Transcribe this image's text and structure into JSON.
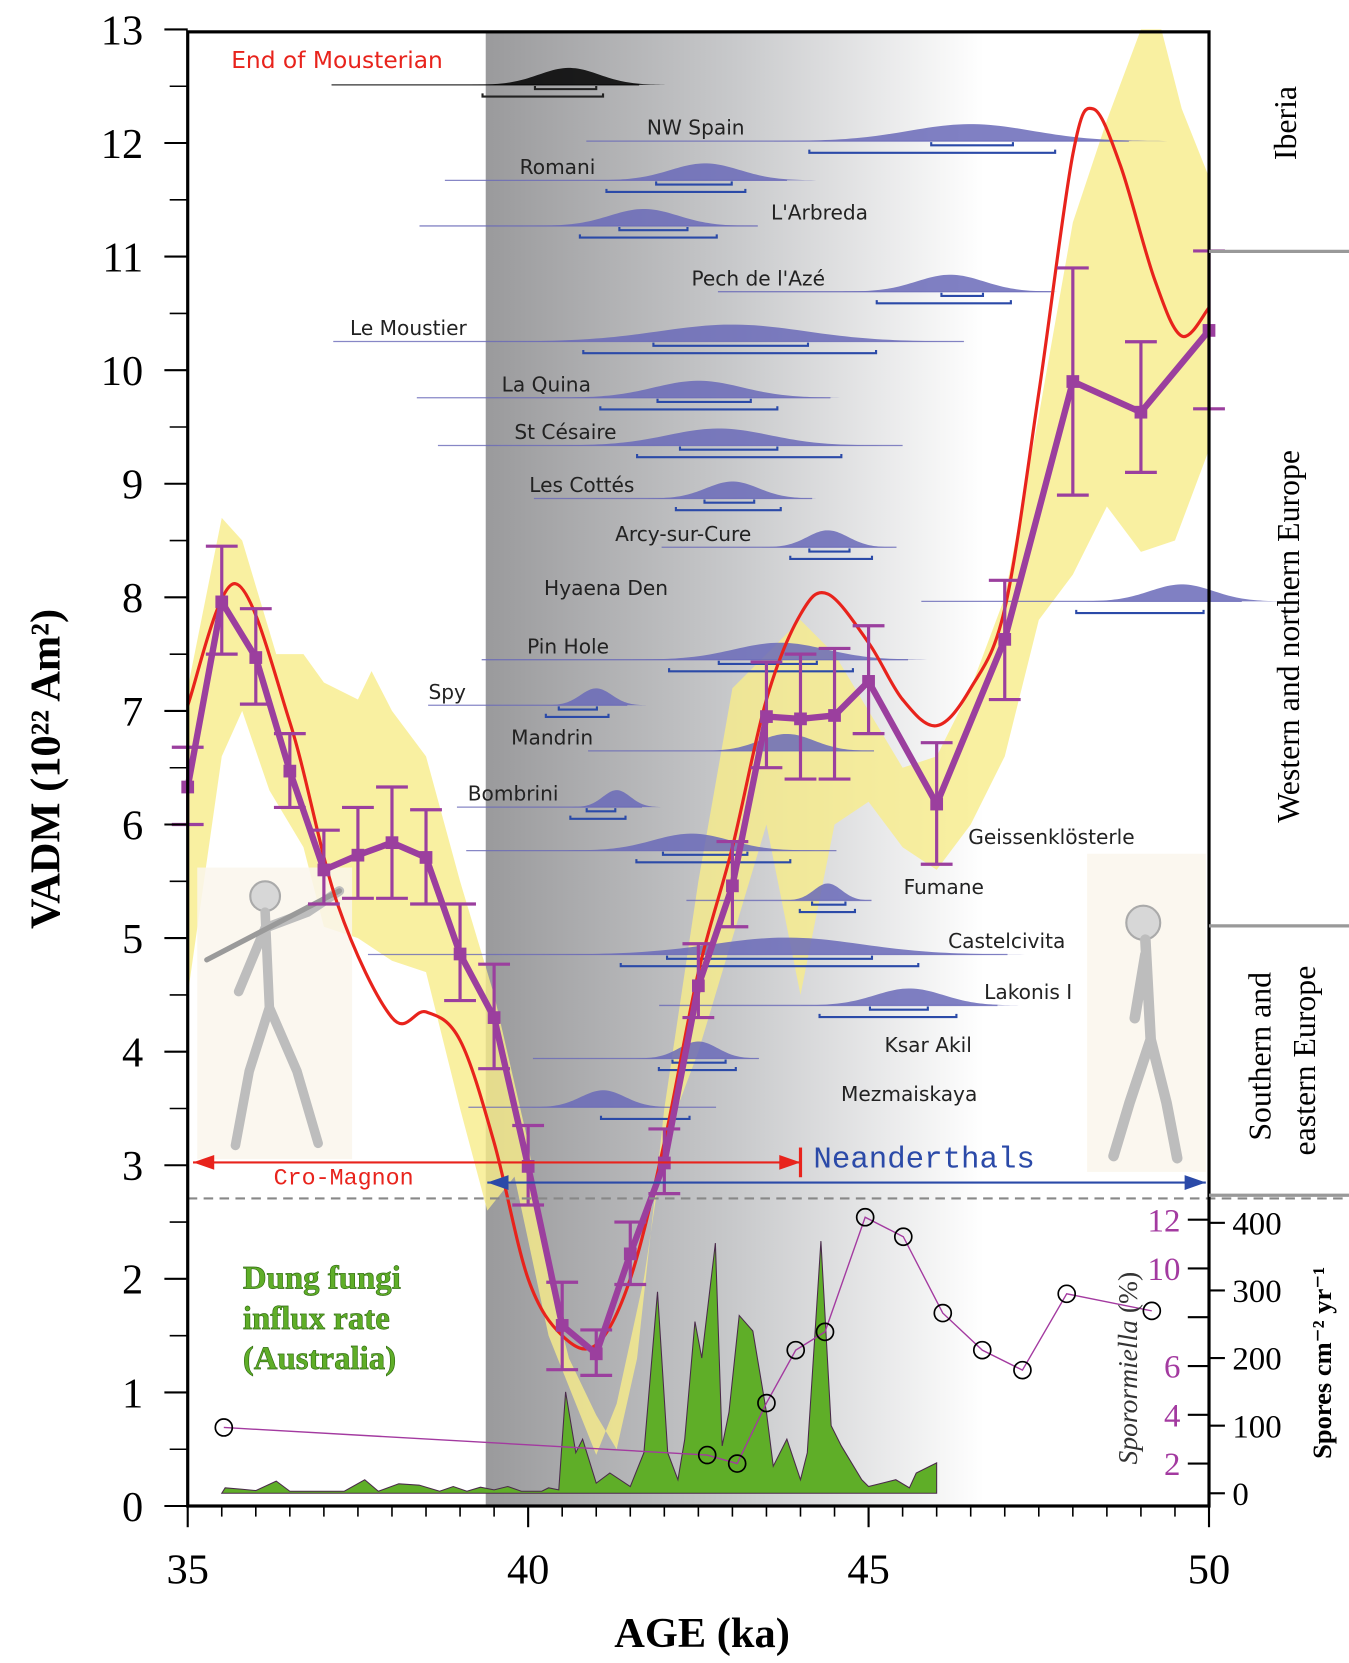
{
  "chart_data": {
    "type": "line",
    "xlabel": "AGE (ka)",
    "ylabel": "VADM (10²² Am²)",
    "xlim": [
      35,
      50
    ],
    "ylim": [
      0,
      13
    ],
    "x_ticks": [
      "35",
      "40",
      "45",
      "50"
    ],
    "y_ticks": [
      "0",
      "1",
      "2",
      "3",
      "4",
      "5",
      "6",
      "7",
      "8",
      "9",
      "10",
      "11",
      "12",
      "13"
    ],
    "colors": {
      "vadm": "#9b3f9e",
      "model": "#e8231c",
      "band": "#f7ec8a",
      "fungi": "#5fae28",
      "neanderthal": "#2b4aa8",
      "cromagnon": "#e8231c",
      "site": "#6a6ab8"
    },
    "vadm_series": {
      "x": [
        35,
        35.5,
        36,
        36.5,
        37,
        37.5,
        38,
        38.5,
        39,
        39.5,
        40,
        40.5,
        41,
        41.5,
        42,
        42.5,
        43,
        43.5,
        44,
        44.5,
        45,
        46,
        47,
        48,
        49,
        50
      ],
      "y": [
        6.33,
        7.96,
        7.47,
        6.47,
        5.6,
        5.73,
        5.84,
        5.71,
        4.86,
        4.3,
        2.99,
        1.59,
        1.34,
        2.22,
        3.02,
        4.58,
        5.46,
        6.95,
        6.93,
        6.96,
        7.26,
        6.18,
        7.63,
        9.9,
        9.63,
        10.35
      ],
      "err_low": [
        6.0,
        7.5,
        7.06,
        6.15,
        5.3,
        5.35,
        5.35,
        5.3,
        4.45,
        3.85,
        2.65,
        1.2,
        1.15,
        1.95,
        2.75,
        4.3,
        5.1,
        6.5,
        6.4,
        6.4,
        6.8,
        5.65,
        7.1,
        8.9,
        9.1,
        9.66
      ],
      "err_high": [
        6.68,
        8.45,
        7.9,
        6.8,
        5.95,
        6.15,
        6.33,
        6.13,
        5.3,
        4.77,
        3.35,
        1.97,
        1.55,
        2.5,
        3.32,
        4.95,
        5.85,
        7.43,
        7.5,
        7.55,
        7.75,
        6.72,
        8.15,
        10.9,
        10.25,
        11.05
      ]
    },
    "model_curve": {
      "x": [
        35,
        35.7,
        36.5,
        37.2,
        38,
        38.5,
        39,
        39.5,
        40,
        40.5,
        41,
        41.5,
        42,
        42.5,
        43,
        43.5,
        44,
        44.4,
        45,
        45.5,
        46,
        46.5,
        47,
        47.5,
        48,
        48.3,
        48.7,
        49.2,
        49.6,
        50
      ],
      "y": [
        7.05,
        8.12,
        6.9,
        5.3,
        4.3,
        4.35,
        4.1,
        3.2,
        2.0,
        1.5,
        1.42,
        2.0,
        3.2,
        4.7,
        5.8,
        7.1,
        7.85,
        8.03,
        7.6,
        7.1,
        6.87,
        7.2,
        7.9,
        9.8,
        11.9,
        12.3,
        11.8,
        10.8,
        10.3,
        10.55
      ]
    },
    "envelope": {
      "upper": [
        [
          35,
          7.2
        ],
        [
          35.5,
          8.7
        ],
        [
          35.8,
          8.5
        ],
        [
          36.3,
          7.5
        ],
        [
          36.7,
          7.5
        ],
        [
          37,
          7.25
        ],
        [
          37.5,
          7.1
        ],
        [
          37.7,
          7.35
        ],
        [
          38,
          7.0
        ],
        [
          38.5,
          6.6
        ],
        [
          39,
          5.5
        ],
        [
          39.5,
          4.5
        ],
        [
          40,
          3.2
        ],
        [
          40.3,
          2.0
        ],
        [
          40.6,
          1.3
        ],
        [
          41,
          0.8
        ],
        [
          41.3,
          0.5
        ],
        [
          41.6,
          1.3
        ],
        [
          42,
          3.5
        ],
        [
          42.5,
          5.5
        ],
        [
          43,
          7.2
        ],
        [
          43.5,
          7.5
        ],
        [
          44,
          7.8
        ],
        [
          44.5,
          7.5
        ],
        [
          45,
          7.0
        ],
        [
          45.5,
          6.5
        ],
        [
          46,
          6.6
        ],
        [
          46.5,
          7.2
        ],
        [
          47,
          8.0
        ],
        [
          47.5,
          9.6
        ],
        [
          48,
          11.3
        ],
        [
          48.5,
          12.2
        ],
        [
          49,
          13.0
        ],
        [
          49.3,
          13.0
        ],
        [
          49.6,
          12.3
        ],
        [
          50,
          11.7
        ]
      ],
      "lower": [
        [
          35,
          4.5
        ],
        [
          35.5,
          6.6
        ],
        [
          35.8,
          7.0
        ],
        [
          36.2,
          6.3
        ],
        [
          36.7,
          5.8
        ],
        [
          37,
          5.1
        ],
        [
          37.5,
          5.0
        ],
        [
          38,
          4.8
        ],
        [
          38.5,
          4.7
        ],
        [
          39,
          3.5
        ],
        [
          39.4,
          2.6
        ],
        [
          39.8,
          2.9
        ],
        [
          40.3,
          1.5
        ],
        [
          40.7,
          0.9
        ],
        [
          41,
          0.45
        ],
        [
          41.3,
          0.9
        ],
        [
          41.7,
          2.0
        ],
        [
          42,
          3.2
        ],
        [
          42.5,
          4.0
        ],
        [
          43,
          5.0
        ],
        [
          43.5,
          6.0
        ],
        [
          44,
          4.5
        ],
        [
          44.5,
          6.0
        ],
        [
          45,
          6.2
        ],
        [
          45.5,
          5.8
        ],
        [
          46,
          5.6
        ],
        [
          46.5,
          6.0
        ],
        [
          47,
          6.6
        ],
        [
          47.5,
          7.8
        ],
        [
          48,
          8.2
        ],
        [
          48.5,
          8.8
        ],
        [
          49,
          8.4
        ],
        [
          49.5,
          8.5
        ],
        [
          50,
          9.3
        ]
      ]
    },
    "dung_fungi": {
      "label": [
        "Dung fungi",
        "influx rate",
        "(Australia)"
      ],
      "axis_label": "Spores cm⁻² yr⁻¹",
      "ticks": [
        "0",
        "100",
        "200",
        "300",
        "400"
      ],
      "points": [
        [
          35.5,
          0
        ],
        [
          35.55,
          8
        ],
        [
          35.8,
          6
        ],
        [
          36,
          4
        ],
        [
          36.3,
          18
        ],
        [
          36.5,
          3
        ],
        [
          37.3,
          3
        ],
        [
          37.6,
          20
        ],
        [
          37.8,
          3
        ],
        [
          38.1,
          14
        ],
        [
          38.4,
          12
        ],
        [
          38.7,
          3
        ],
        [
          38.9,
          10
        ],
        [
          39.1,
          3
        ],
        [
          39.3,
          9
        ],
        [
          39.5,
          5
        ],
        [
          39.7,
          10
        ],
        [
          39.9,
          3
        ],
        [
          40.2,
          3
        ],
        [
          40.3,
          8
        ],
        [
          40.45,
          5
        ],
        [
          40.55,
          150
        ],
        [
          40.7,
          60
        ],
        [
          40.8,
          80
        ],
        [
          41.0,
          15
        ],
        [
          41.2,
          30
        ],
        [
          41.5,
          10
        ],
        [
          41.7,
          60
        ],
        [
          41.9,
          298
        ],
        [
          42.05,
          60
        ],
        [
          42.2,
          20
        ],
        [
          42.3,
          80
        ],
        [
          42.45,
          254
        ],
        [
          42.55,
          200
        ],
        [
          42.75,
          370
        ],
        [
          42.85,
          70
        ],
        [
          42.95,
          120
        ],
        [
          43.1,
          263
        ],
        [
          43.3,
          240
        ],
        [
          43.5,
          120
        ],
        [
          43.6,
          40
        ],
        [
          43.8,
          80
        ],
        [
          44.0,
          20
        ],
        [
          44.1,
          60
        ],
        [
          44.3,
          373
        ],
        [
          44.45,
          100
        ],
        [
          44.6,
          70
        ],
        [
          44.9,
          20
        ],
        [
          45.0,
          10
        ],
        [
          45.2,
          15
        ],
        [
          45.4,
          20
        ],
        [
          45.6,
          8
        ],
        [
          45.7,
          30
        ],
        [
          45.9,
          40
        ],
        [
          46.0,
          45
        ],
        [
          46.0,
          0
        ]
      ]
    },
    "sporormiella": {
      "axis_label_italic": "Sporormiella",
      "axis_label_unit": "(%)",
      "ticks": [
        "2",
        "4",
        "6",
        "10",
        "12"
      ],
      "points": [
        [
          35.53,
          3.48
        ],
        [
          42.63,
          2.35
        ],
        [
          43.07,
          2.0
        ],
        [
          43.5,
          4.48
        ],
        [
          43.93,
          6.65
        ],
        [
          44.36,
          7.4
        ],
        [
          44.95,
          12.1
        ],
        [
          45.51,
          11.3
        ],
        [
          46.09,
          8.17
        ],
        [
          46.67,
          6.65
        ],
        [
          47.26,
          5.83
        ],
        [
          47.91,
          8.96
        ],
        [
          49.16,
          8.26
        ]
      ]
    },
    "end_of_mousterian": {
      "label": "End of Mousterian",
      "peak": 40.6,
      "range_2s": [
        39.33,
        41.1
      ],
      "range_1s": [
        40.1,
        41.0
      ]
    },
    "sites": [
      {
        "name": "NW Spain",
        "peak": 46.5,
        "range_2s": [
          44.13,
          47.74
        ],
        "range_1s": [
          45.92,
          47.12
        ]
      },
      {
        "name": "Romani",
        "peak": 42.6,
        "range_2s": [
          41.15,
          43.19
        ],
        "range_1s": [
          41.88,
          42.99
        ]
      },
      {
        "name": "L'Arbreda",
        "peak": 41.7,
        "range_2s": [
          40.76,
          42.77
        ],
        "range_1s": [
          41.34,
          42.34
        ]
      },
      {
        "name": "Pech de l'Azé",
        "peak": 46.2,
        "range_2s": [
          45.12,
          47.09
        ],
        "range_1s": [
          46.07,
          46.68
        ]
      },
      {
        "name": "Le Moustier",
        "peak": 43.0,
        "range_2s": [
          40.81,
          45.11
        ],
        "range_1s": [
          41.84,
          44.11
        ]
      },
      {
        "name": "La Quina",
        "peak": 42.5,
        "range_2s": [
          41.06,
          43.66
        ],
        "range_1s": [
          41.9,
          43.27
        ]
      },
      {
        "name": "St Césaire",
        "peak": 42.8,
        "range_2s": [
          41.6,
          44.6
        ],
        "range_1s": [
          42.23,
          43.66
        ]
      },
      {
        "name": "Les Cottés",
        "peak": 43.0,
        "range_2s": [
          42.17,
          43.71
        ],
        "range_1s": [
          42.59,
          43.32
        ]
      },
      {
        "name": "Arcy-sur-Cure",
        "peak": 44.4,
        "range_2s": [
          43.85,
          45.05
        ],
        "range_1s": [
          44.13,
          44.72
        ]
      },
      {
        "name": "Hyaena Den",
        "peak": 49.6,
        "range_2s": [
          48.05,
          49.92
        ],
        "range_1s": null
      },
      {
        "name": "Pin Hole",
        "peak": 43.7,
        "range_2s": [
          42.07,
          44.77
        ],
        "range_1s": [
          42.8,
          44.24
        ]
      },
      {
        "name": "Spy",
        "peak": 41.0,
        "range_2s": [
          40.26,
          41.18
        ],
        "range_1s": [
          40.45,
          41.01
        ]
      },
      {
        "name": "Mandrin",
        "peak": 43.8,
        "range_2s": null,
        "range_1s": null
      },
      {
        "name": "Bombrini",
        "peak": 41.3,
        "range_2s": [
          40.62,
          41.43
        ],
        "range_1s": [
          40.86,
          41.28
        ]
      },
      {
        "name": "Geissenklösterle",
        "peak": 42.4,
        "range_2s": [
          41.59,
          43.85
        ],
        "range_1s": [
          41.98,
          43.22
        ]
      },
      {
        "name": "Fumane",
        "peak": 44.4,
        "range_2s": [
          43.99,
          44.8
        ],
        "range_1s": [
          44.17,
          44.66
        ]
      },
      {
        "name": "Castelcivita",
        "peak": 43.8,
        "range_2s": [
          41.36,
          45.73
        ],
        "range_1s": [
          42.04,
          45.05
        ]
      },
      {
        "name": "Lakonis I",
        "peak": 45.6,
        "range_2s": [
          44.28,
          46.29
        ],
        "range_1s": [
          45.02,
          45.87
        ]
      },
      {
        "name": "Ksar Akil",
        "peak": 42.5,
        "range_2s": [
          41.92,
          43.05
        ],
        "range_1s": [
          42.12,
          42.9
        ]
      },
      {
        "name": "Mezmaiskaya",
        "peak": 41.1,
        "range_2s": [
          41.07,
          42.37
        ],
        "range_1s": null
      }
    ],
    "regions": {
      "iberia": "Iberia",
      "western": "Western and northern Europe",
      "southern_1": "Southern and",
      "southern_2": "eastern Europe"
    },
    "populations": {
      "cromagnon": "Cro-Magnon",
      "cromagnon_until": 44.0,
      "neanderthals": "Neanderthals",
      "neanderthals_from": 39.4
    }
  }
}
